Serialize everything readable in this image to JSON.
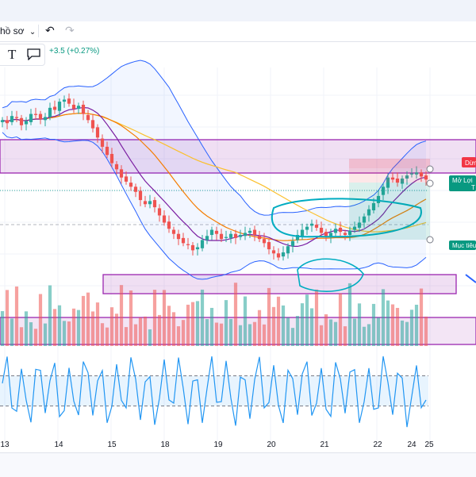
{
  "toolbar": {
    "profile_label": "hồ sơ",
    "undo_icon": "undo-icon",
    "redo_icon": "redo-icon",
    "text_tool_icon": "text-tool-icon",
    "comment_tool_icon": "comment-icon"
  },
  "price_change": "+3.5 (+0.27%)",
  "labels": {
    "stop": "Dừng",
    "target_open": "Mở Lợi",
    "target_t": "T",
    "target": "Mục tiêu"
  },
  "colors": {
    "up": "#26a69a",
    "down": "#ef5350",
    "zone": "#9c27b0",
    "bb": "#2962ff",
    "ma_fast": "#7b1fa2",
    "ma_mid": "#f57c00",
    "ma_slow": "#fbc02d",
    "rsi": "#2196f3"
  },
  "chart_data": {
    "type": "candlestick",
    "x_ticks": [
      "13",
      "14",
      "15",
      "18",
      "19",
      "20",
      "21",
      "22",
      "24",
      "25"
    ],
    "close": [
      208,
      205,
      212,
      210,
      203,
      207,
      214,
      213,
      209,
      211,
      220,
      218,
      226,
      228,
      224,
      219,
      222,
      214,
      208,
      200,
      191,
      182,
      174,
      166,
      160,
      152,
      148,
      143,
      138,
      130,
      126,
      129,
      123,
      115,
      108,
      102,
      97,
      92,
      88,
      86,
      81,
      84,
      91,
      95,
      101,
      97,
      92,
      94,
      97,
      93,
      96,
      98,
      100,
      96,
      92,
      88,
      82,
      78,
      74,
      79,
      85,
      90,
      96,
      101,
      104,
      107,
      103,
      98,
      95,
      98,
      102,
      99,
      96,
      100,
      104,
      108,
      114,
      121,
      127,
      134,
      143,
      152,
      150,
      147,
      151,
      154,
      156,
      157,
      153,
      150
    ],
    "volume_scale": [
      0,
      1
    ],
    "rsi_range": [
      0,
      100
    ],
    "rsi_bands": [
      30,
      70
    ]
  }
}
